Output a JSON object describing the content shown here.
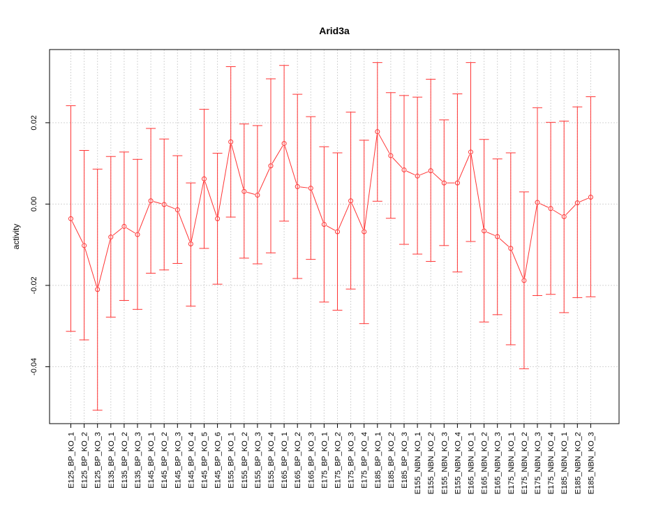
{
  "chart_data": {
    "type": "line",
    "title": "Arid3a",
    "xlabel": "",
    "ylabel": "activity",
    "ylim": [
      -0.054,
      0.038
    ],
    "yticks": [
      -0.04,
      -0.02,
      0.0,
      0.02
    ],
    "ytick_labels": [
      "-0.04",
      "-0.02",
      "0.00",
      "0.02"
    ],
    "grid": true,
    "color": "#ff3333",
    "categories": [
      "E125_BP_KO_1",
      "E125_BP_KO_2",
      "E125_BP_KO_3",
      "E135_BP_KO_1",
      "E135_BP_KO_2",
      "E135_BP_KO_3",
      "E145_BP_KO_1",
      "E145_BP_KO_2",
      "E145_BP_KO_3",
      "E145_BP_KO_4",
      "E145_BP_KO_5",
      "E145_BP_KO_6",
      "E155_BP_KO_1",
      "E155_BP_KO_2",
      "E155_BP_KO_3",
      "E155_BP_KO_4",
      "E165_BP_KO_1",
      "E165_BP_KO_2",
      "E165_BP_KO_3",
      "E175_BP_KO_1",
      "E175_BP_KO_2",
      "E175_BP_KO_3",
      "E175_BP_KO_4",
      "E185_BP_KO_1",
      "E185_BP_KO_2",
      "E185_BP_KO_3",
      "E155_NBN_KO_1",
      "E155_NBN_KO_2",
      "E155_NBN_KO_3",
      "E155_NBN_KO_4",
      "E165_NBN_KO_1",
      "E165_NBN_KO_2",
      "E165_NBN_KO_3",
      "E175_NBN_KO_1",
      "E175_NBN_KO_2",
      "E175_NBN_KO_3",
      "E175_NBN_KO_4",
      "E185_NBN_KO_1",
      "E185_NBN_KO_2",
      "E185_NBN_KO_3"
    ],
    "values": [
      -0.0036,
      -0.0102,
      -0.021,
      -0.0081,
      -0.0055,
      -0.0075,
      0.0008,
      -0.0001,
      -0.0014,
      -0.0098,
      0.0062,
      -0.0036,
      0.0153,
      0.0031,
      0.0022,
      0.0094,
      0.0149,
      0.0043,
      0.0039,
      -0.005,
      -0.0068,
      0.0008,
      -0.0068,
      0.0178,
      0.0119,
      0.0084,
      0.0069,
      0.0082,
      0.0052,
      0.0052,
      0.0128,
      -0.0066,
      -0.008,
      -0.0109,
      -0.0188,
      0.0004,
      -0.0011,
      -0.0031,
      0.0003,
      0.0017
    ],
    "upper": [
      0.0242,
      0.0132,
      0.0086,
      0.0117,
      0.0128,
      0.011,
      0.0186,
      0.016,
      0.0119,
      0.0052,
      0.0233,
      0.0125,
      0.0338,
      0.0197,
      0.0193,
      0.0308,
      0.0341,
      0.027,
      0.0215,
      0.0141,
      0.0126,
      0.0226,
      0.0157,
      0.0348,
      0.0274,
      0.0267,
      0.0263,
      0.0307,
      0.0207,
      0.0271,
      0.0348,
      0.0159,
      0.0111,
      0.0126,
      0.003,
      0.0237,
      0.0201,
      0.0204,
      0.0239,
      0.0264
    ],
    "lower": [
      -0.0313,
      -0.0334,
      -0.0507,
      -0.0278,
      -0.0237,
      -0.0259,
      -0.017,
      -0.0162,
      -0.0146,
      -0.0251,
      -0.0109,
      -0.0197,
      -0.0032,
      -0.0133,
      -0.0147,
      -0.012,
      -0.0042,
      -0.0183,
      -0.0136,
      -0.0241,
      -0.0261,
      -0.0209,
      -0.0294,
      0.0007,
      -0.0035,
      -0.0099,
      -0.0123,
      -0.0141,
      -0.0102,
      -0.0167,
      -0.0092,
      -0.029,
      -0.0272,
      -0.0346,
      -0.0405,
      -0.0225,
      -0.0222,
      -0.0267,
      -0.023,
      -0.0228
    ]
  }
}
